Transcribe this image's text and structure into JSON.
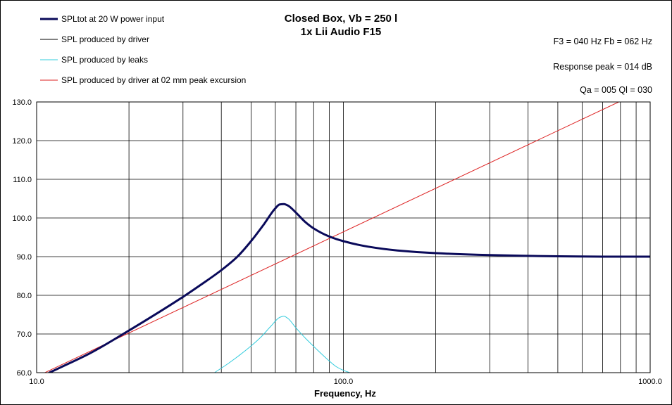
{
  "chart_data": {
    "type": "line",
    "title": "Closed Box, Vb = 250 l",
    "subtitle": "1x Lii Audio F15",
    "xlabel": "Frequency, Hz",
    "ylabel": "",
    "xscale": "log",
    "xlim": [
      10,
      1000
    ],
    "ylim": [
      60,
      130
    ],
    "x_ticks": [
      10,
      100,
      1000
    ],
    "x_tick_labels": [
      "10.0",
      "100.0",
      "1000.0"
    ],
    "y_ticks": [
      60,
      70,
      80,
      90,
      100,
      110,
      120,
      130
    ],
    "y_tick_labels": [
      "60.0",
      "70.0",
      "80.0",
      "90.0",
      "100.0",
      "110.0",
      "120.0",
      "130.0"
    ],
    "grid": true,
    "legend_position": "top-left",
    "info_lines": [
      "F3 = 040 Hz  Fb = 062 Hz",
      "Response  peak = 014 dB",
      "Qa = 005  Ql = 030"
    ],
    "series": [
      {
        "name": "SPLtot at 20 W power input",
        "color": "#0a0a5a",
        "width": 3,
        "x": [
          11,
          12,
          15,
          20,
          25,
          30,
          35,
          40,
          45,
          50,
          55,
          60,
          62,
          64,
          66,
          70,
          75,
          80,
          90,
          100,
          120,
          150,
          200,
          300,
          400,
          500,
          700,
          1000
        ],
        "y": [
          60,
          61.4,
          65.1,
          70.9,
          75.6,
          79.6,
          83.2,
          86.5,
          89.9,
          94,
          98.3,
          102.5,
          103.5,
          103.6,
          103.2,
          101.4,
          99,
          97.3,
          95.2,
          94,
          92.6,
          91.6,
          90.9,
          90.4,
          90.2,
          90.1,
          90,
          90
        ]
      },
      {
        "name": "SPL produced by driver",
        "color": "#000000",
        "width": 1,
        "x": [],
        "y": []
      },
      {
        "name": "SPL produced by leaks",
        "color": "#33ccdd",
        "width": 1,
        "x": [
          38,
          42,
          46,
          50,
          54,
          58,
          62,
          64,
          66,
          70,
          75,
          80,
          85,
          90,
          95,
          100,
          105
        ],
        "y": [
          60,
          62.3,
          64.6,
          66.9,
          69.3,
          72,
          74.3,
          74.6,
          74,
          71.6,
          69,
          66.8,
          64.8,
          63,
          61.5,
          60.6,
          60
        ]
      },
      {
        "name": "SPL produced by driver at 02 mm peak excursion",
        "color": "#dd2222",
        "width": 1,
        "x": [
          10,
          790
        ],
        "y": [
          59,
          130
        ]
      }
    ]
  }
}
